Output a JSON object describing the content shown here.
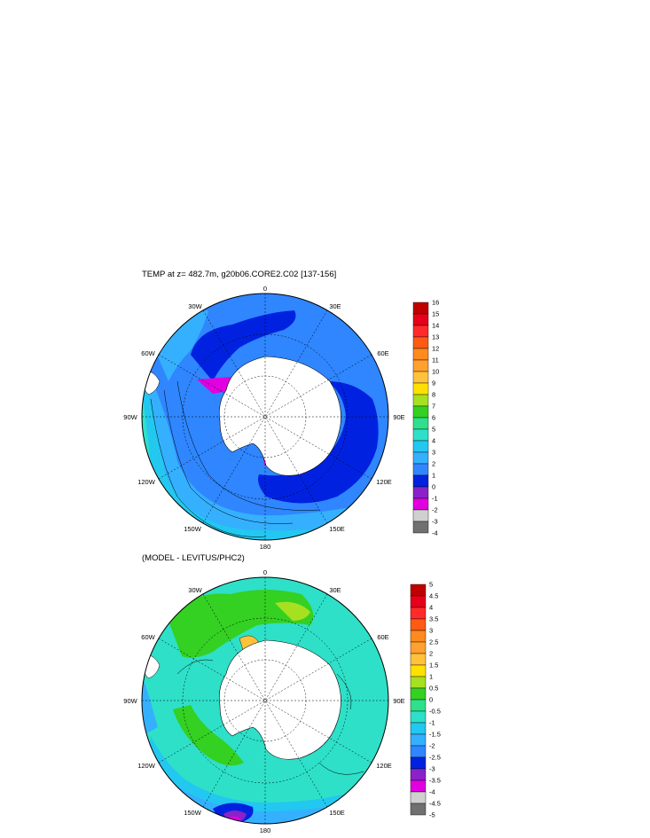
{
  "panels": [
    {
      "id": "temp",
      "title": "TEMP at z= 482.7m, g20b06.CORE2.C02 [137-156]",
      "lon_labels": {
        "n": "0",
        "ne": "30E",
        "e1": "60E",
        "e": "90E",
        "se1": "120E",
        "se": "150E",
        "s": "180",
        "sw": "150W",
        "sw1": "120W",
        "w": "90W",
        "nw1": "60W",
        "nw": "30W"
      },
      "colorbar": {
        "levels": [
          "16",
          "15",
          "14",
          "13",
          "12",
          "11",
          "10",
          "9",
          "8",
          "7",
          "6",
          "5",
          "4",
          "3",
          "2",
          "1",
          "0",
          "-1",
          "-2",
          "-3",
          "-4"
        ],
        "colors": [
          "#c00000",
          "#e8001a",
          "#ff2a2a",
          "#ff5a14",
          "#ff8a1e",
          "#ffa030",
          "#ffc23a",
          "#ffe000",
          "#a6e020",
          "#34d022",
          "#2ee08c",
          "#2ee0c8",
          "#22c8f0",
          "#35b0ff",
          "#2f86ff",
          "#0022e0",
          "#8a22c8",
          "#e000e0",
          "#d0d0d0",
          "#707070"
        ]
      }
    },
    {
      "id": "diff",
      "title": "(MODEL - LEVITUS/PHC2)",
      "lon_labels": {
        "n": "0",
        "ne": "30E",
        "e1": "60E",
        "e": "90E",
        "se1": "120E",
        "se": "150E",
        "s": "180",
        "sw": "150W",
        "sw1": "120W",
        "w": "90W",
        "nw1": "60W",
        "nw": "30W"
      },
      "colorbar": {
        "levels": [
          "5",
          "4.5",
          "4",
          "3.5",
          "3",
          "2.5",
          "2",
          "1.5",
          "1",
          "0.5",
          "0",
          "-0.5",
          "-1",
          "-1.5",
          "-2",
          "-2.5",
          "-3",
          "-3.5",
          "-4",
          "-4.5",
          "-5"
        ],
        "colors": [
          "#c00000",
          "#e8001a",
          "#ff2a2a",
          "#ff5a14",
          "#ff8a1e",
          "#ffa030",
          "#ffc23a",
          "#ffe000",
          "#a6e020",
          "#34d022",
          "#2ee08c",
          "#2ee0c8",
          "#22c8f0",
          "#35b0ff",
          "#2f86ff",
          "#0022e0",
          "#8a22c8",
          "#e000e0",
          "#d0d0d0",
          "#707070"
        ]
      }
    }
  ]
}
